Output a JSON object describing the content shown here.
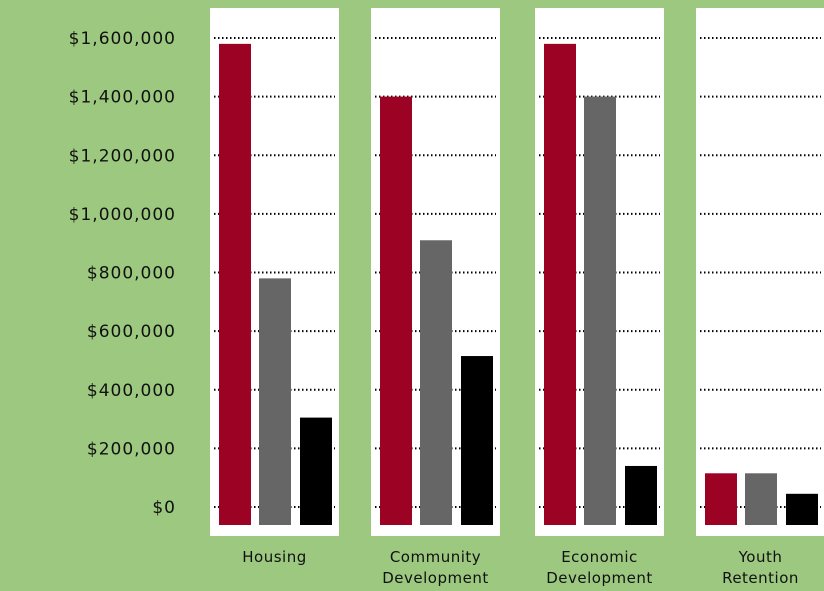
{
  "chart_data": {
    "type": "bar",
    "title": "",
    "xlabel": "",
    "ylabel": "",
    "ylim": [
      0,
      1600000
    ],
    "y_ticks": [
      0,
      200000,
      400000,
      600000,
      800000,
      1000000,
      1200000,
      1400000,
      1600000
    ],
    "y_tick_labels": [
      "$0",
      "$200,000",
      "$400,000",
      "$600,000",
      "$800,000",
      "$1,000,000",
      "$1,200,000",
      "$1,400,000",
      "$1,600,000"
    ],
    "categories": [
      [
        "Housing"
      ],
      [
        "Community",
        "Development"
      ],
      [
        "Economic",
        "Development"
      ],
      [
        "Youth",
        "Retention"
      ]
    ],
    "series": [
      {
        "color": "#9b0224",
        "values": [
          1580000,
          1400000,
          1580000,
          115000
        ]
      },
      {
        "color": "#666666",
        "values": [
          780000,
          910000,
          1400000,
          115000
        ]
      },
      {
        "color": "#000000",
        "values": [
          305000,
          515000,
          140000,
          45000
        ]
      }
    ],
    "grid": true,
    "grid_style": "dotted",
    "legend": "none",
    "panel_color": "#ffffff",
    "background_color": "#9cc97f"
  }
}
